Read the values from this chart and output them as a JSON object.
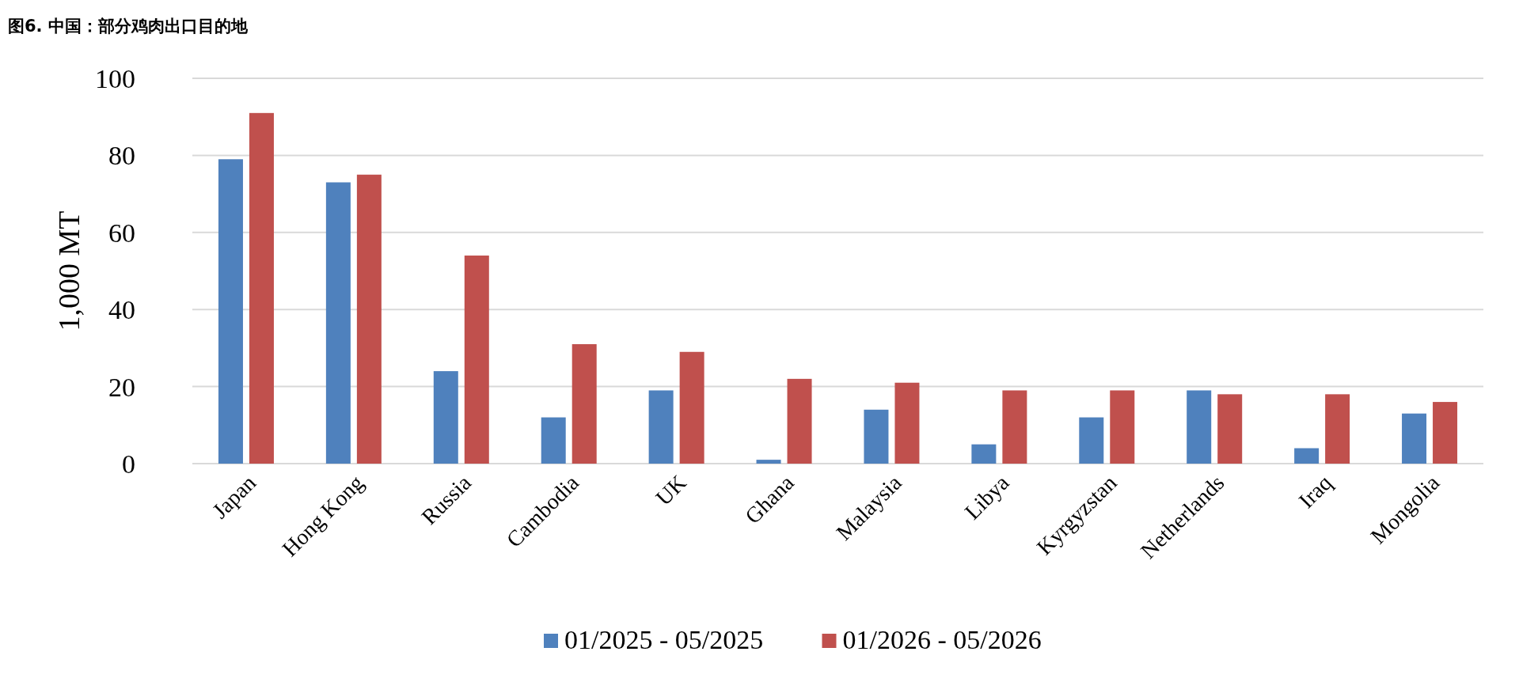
{
  "chart_data": {
    "type": "bar",
    "title": "图6. 中国：部分鸡肉出口目的地",
    "ylabel": "1,000 MT",
    "categories": [
      "Japan",
      "Hong Kong",
      "Russia",
      "Cambodia",
      "UK",
      "Ghana",
      "Malaysia",
      "Libya",
      "Kyrgyzstan",
      "Netherlands",
      "Iraq",
      "Mongolia"
    ],
    "series": [
      {
        "name": "01/2025 - 05/2025",
        "color": "#4f81bd",
        "values": [
          79,
          73,
          24,
          12,
          19,
          1,
          14,
          5,
          12,
          19,
          4,
          13
        ]
      },
      {
        "name": "01/2026 - 05/2026",
        "color": "#c0504d",
        "values": [
          91,
          75,
          54,
          31,
          29,
          22,
          21,
          19,
          19,
          18,
          18,
          16
        ]
      }
    ],
    "ylim": [
      0,
      100
    ],
    "yticks": [
      0,
      20,
      40,
      60,
      80,
      100
    ],
    "grid": "y",
    "legend": "bottom"
  }
}
